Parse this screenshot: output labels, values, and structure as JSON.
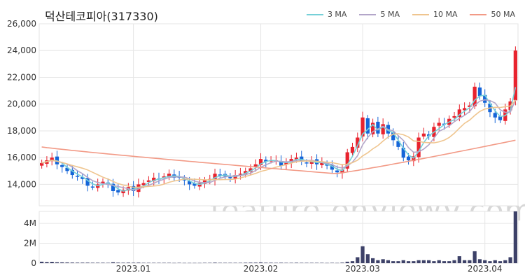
{
  "title": "덕산테코피아(317330)",
  "watermark": "feature.enViewV.com",
  "legend": [
    {
      "label": "3 MA",
      "color": "#76d0d8"
    },
    {
      "label": "5 MA",
      "color": "#b3a6c9"
    },
    {
      "label": "10 MA",
      "color": "#efc58f"
    },
    {
      "label": "50 MA",
      "color": "#f29a86"
    }
  ],
  "colors": {
    "up": "#e8232e",
    "down": "#1565d8",
    "volume": "#3d4168",
    "grid": "#e6e6e6"
  },
  "chart_data": {
    "type": "candlestick",
    "x_ticks": [
      "2023.01",
      "2023.02",
      "2023.03",
      "2023.04"
    ],
    "price_axis": {
      "ticks": [
        "14,000",
        "16,000",
        "18,000",
        "20,000",
        "22,000",
        "24,000",
        "26,000"
      ],
      "range": [
        12400,
        26000
      ]
    },
    "volume_axis": {
      "ticks": [
        "0",
        "2M",
        "4M"
      ],
      "range": [
        0,
        5200000
      ]
    },
    "series": {
      "close": [
        15600,
        15800,
        16000,
        15500,
        15300,
        15000,
        14700,
        14600,
        14400,
        13900,
        13800,
        14000,
        14200,
        14100,
        13500,
        13400,
        13600,
        13800,
        13500,
        14000,
        14100,
        14300,
        14500,
        14400,
        14600,
        14800,
        14500,
        14500,
        14300,
        14000,
        13900,
        14100,
        14300,
        14400,
        14800,
        14700,
        14600,
        14500,
        14700,
        14800,
        15000,
        15200,
        15500,
        15900,
        15700,
        15800,
        15800,
        15400,
        15700,
        15900,
        16000,
        15700,
        15600,
        15800,
        15500,
        15600,
        15400,
        15100,
        14900,
        15100,
        16400,
        16800,
        17500,
        19000,
        17800,
        18600,
        17800,
        18500,
        17800,
        17300,
        16800,
        16000,
        15800,
        16100,
        17500,
        17800,
        17600,
        18300,
        18600,
        18500,
        18900,
        19100,
        19600,
        19700,
        19900,
        21300,
        20600,
        20100,
        19400,
        19000,
        18800,
        19600,
        20200,
        24000
      ],
      "volume": [
        150000,
        120000,
        140000,
        100000,
        90000,
        80000,
        70000,
        60000,
        60000,
        60000,
        50000,
        50000,
        50000,
        40000,
        100000,
        60000,
        50000,
        60000,
        50000,
        60000,
        40000,
        40000,
        40000,
        40000,
        40000,
        40000,
        30000,
        40000,
        30000,
        30000,
        30000,
        30000,
        40000,
        40000,
        60000,
        40000,
        40000,
        40000,
        40000,
        40000,
        50000,
        60000,
        60000,
        80000,
        50000,
        50000,
        40000,
        50000,
        40000,
        40000,
        50000,
        40000,
        40000,
        40000,
        40000,
        40000,
        30000,
        40000,
        30000,
        60000,
        150000,
        200000,
        600000,
        1700000,
        900000,
        500000,
        300000,
        400000,
        300000,
        200000,
        200000,
        300000,
        200000,
        200000,
        300000,
        300000,
        300000,
        200000,
        300000,
        200000,
        200000,
        300000,
        700000,
        300000,
        300000,
        1200000,
        400000,
        300000,
        200000,
        300000,
        200000,
        300000,
        600000,
        5200000
      ]
    },
    "moving_averages": [
      "3 MA",
      "5 MA",
      "10 MA",
      "50 MA"
    ],
    "grid": true,
    "legend_position": "top-right"
  }
}
